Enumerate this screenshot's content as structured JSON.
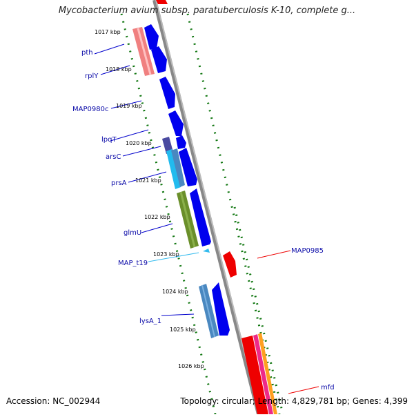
{
  "title": "Mycobacterium avium subsp. paratuberculosis K-10, complete g...",
  "footer": {
    "accession": "Accession: NC_002944",
    "topology": "Topology: circular; Length: 4,829,781 bp; Genes: 4,399"
  },
  "ticks": [
    "1017 kbp",
    "1018 kbp",
    "1019 kbp",
    "1020 kbp",
    "1021 kbp",
    "1022 kbp",
    "1023 kbp",
    "1024 kbp",
    "1025 kbp",
    "1026 kbp"
  ],
  "genes_left": [
    "pth",
    "rplY",
    "MAP0980c",
    "lpqT",
    "arsC",
    "prsA",
    "glmU",
    "MAP_t19",
    "lysA_1"
  ],
  "genes_right": [
    "MAP0985",
    "mfd"
  ],
  "colors": {
    "cds_blue": "#0000ee",
    "label_blue": "#0a0aa8",
    "trna_cyan": "#33bbee",
    "red_feature": "#ee0000",
    "green_dots": "#117711",
    "backbone": "#888888"
  }
}
